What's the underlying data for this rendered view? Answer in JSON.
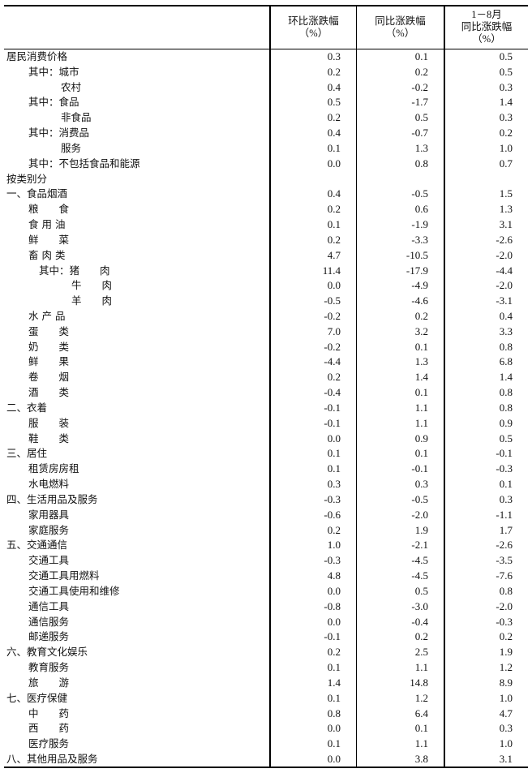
{
  "header": {
    "label": "",
    "col1": [
      "环比涨跌幅",
      "（%）"
    ],
    "col2": [
      "同比涨跌幅",
      "（%）"
    ],
    "col3": [
      "1－8月",
      "同比涨跌幅",
      "（%）"
    ]
  },
  "rows": [
    {
      "label": "居民消费价格",
      "mom": "0.3",
      "yoy": "0.1",
      "ytd": "0.5"
    },
    {
      "label": "其中：城市",
      "mom": "0.2",
      "yoy": "0.2",
      "ytd": "0.5"
    },
    {
      "label": "农村",
      "mom": "0.4",
      "yoy": "-0.2",
      "ytd": "0.3"
    },
    {
      "label": "其中：食品",
      "mom": "0.5",
      "yoy": "-1.7",
      "ytd": "1.4"
    },
    {
      "label": "非食品",
      "mom": "0.2",
      "yoy": "0.5",
      "ytd": "0.3"
    },
    {
      "label": "其中：消费品",
      "mom": "0.4",
      "yoy": "-0.7",
      "ytd": "0.2"
    },
    {
      "label": "服务",
      "mom": "0.1",
      "yoy": "1.3",
      "ytd": "1.0"
    },
    {
      "label": "其中：不包括食品和能源",
      "mom": "0.0",
      "yoy": "0.8",
      "ytd": "0.7"
    },
    {
      "label": "按类别分",
      "mom": "",
      "yoy": "",
      "ytd": ""
    },
    {
      "label": "一、食品烟酒",
      "mom": "0.4",
      "yoy": "-0.5",
      "ytd": "1.5"
    },
    {
      "label": "粮　　食",
      "mom": "0.2",
      "yoy": "0.6",
      "ytd": "1.3"
    },
    {
      "label": "食 用 油",
      "mom": "0.1",
      "yoy": "-1.9",
      "ytd": "3.1"
    },
    {
      "label": "鲜　　菜",
      "mom": "0.2",
      "yoy": "-3.3",
      "ytd": "-2.6"
    },
    {
      "label": "畜 肉 类",
      "mom": "4.7",
      "yoy": "-10.5",
      "ytd": "-2.0"
    },
    {
      "label": "其中：猪　　肉",
      "mom": "11.4",
      "yoy": "-17.9",
      "ytd": "-4.4"
    },
    {
      "label": "牛　　肉",
      "mom": "0.0",
      "yoy": "-4.9",
      "ytd": "-2.0"
    },
    {
      "label": "羊　　肉",
      "mom": "-0.5",
      "yoy": "-4.6",
      "ytd": "-3.1"
    },
    {
      "label": "水 产 品",
      "mom": "-0.2",
      "yoy": "0.2",
      "ytd": "0.4"
    },
    {
      "label": "蛋　　类",
      "mom": "7.0",
      "yoy": "3.2",
      "ytd": "3.3"
    },
    {
      "label": "奶　　类",
      "mom": "-0.2",
      "yoy": "0.1",
      "ytd": "0.8"
    },
    {
      "label": "鲜　　果",
      "mom": "-4.4",
      "yoy": "1.3",
      "ytd": "6.8"
    },
    {
      "label": "卷　　烟",
      "mom": "0.2",
      "yoy": "1.4",
      "ytd": "1.4"
    },
    {
      "label": "酒　　类",
      "mom": "-0.4",
      "yoy": "0.1",
      "ytd": "0.8"
    },
    {
      "label": "二、衣着",
      "mom": "-0.1",
      "yoy": "1.1",
      "ytd": "0.8"
    },
    {
      "label": "服　　装",
      "mom": "-0.1",
      "yoy": "1.1",
      "ytd": "0.9"
    },
    {
      "label": "鞋　　类",
      "mom": "0.0",
      "yoy": "0.9",
      "ytd": "0.5"
    },
    {
      "label": "三、居住",
      "mom": "0.1",
      "yoy": "0.1",
      "ytd": "-0.1"
    },
    {
      "label": "租赁房房租",
      "mom": "0.1",
      "yoy": "-0.1",
      "ytd": "-0.3"
    },
    {
      "label": "水电燃料",
      "mom": "0.3",
      "yoy": "0.3",
      "ytd": "0.1"
    },
    {
      "label": "四、生活用品及服务",
      "mom": "-0.3",
      "yoy": "-0.5",
      "ytd": "0.3"
    },
    {
      "label": "家用器具",
      "mom": "-0.6",
      "yoy": "-2.0",
      "ytd": "-1.1"
    },
    {
      "label": "家庭服务",
      "mom": "0.2",
      "yoy": "1.9",
      "ytd": "1.7"
    },
    {
      "label": "五、交通通信",
      "mom": "1.0",
      "yoy": "-2.1",
      "ytd": "-2.6"
    },
    {
      "label": "交通工具",
      "mom": "-0.3",
      "yoy": "-4.5",
      "ytd": "-3.5"
    },
    {
      "label": "交通工具用燃料",
      "mom": "4.8",
      "yoy": "-4.5",
      "ytd": "-7.6"
    },
    {
      "label": "交通工具使用和维修",
      "mom": "0.0",
      "yoy": "0.5",
      "ytd": "0.8"
    },
    {
      "label": "通信工具",
      "mom": "-0.8",
      "yoy": "-3.0",
      "ytd": "-2.0"
    },
    {
      "label": "通信服务",
      "mom": "0.0",
      "yoy": "-0.4",
      "ytd": "-0.3"
    },
    {
      "label": "邮递服务",
      "mom": "-0.1",
      "yoy": "0.2",
      "ytd": "0.2"
    },
    {
      "label": "六、教育文化娱乐",
      "mom": "0.2",
      "yoy": "2.5",
      "ytd": "1.9"
    },
    {
      "label": "教育服务",
      "mom": "0.1",
      "yoy": "1.1",
      "ytd": "1.2"
    },
    {
      "label": "旅　　游",
      "mom": "1.4",
      "yoy": "14.8",
      "ytd": "8.9"
    },
    {
      "label": "七、医疗保健",
      "mom": "0.1",
      "yoy": "1.2",
      "ytd": "1.0"
    },
    {
      "label": "中　　药",
      "mom": "0.8",
      "yoy": "6.4",
      "ytd": "4.7"
    },
    {
      "label": "西　　药",
      "mom": "0.0",
      "yoy": "0.1",
      "ytd": "0.3"
    },
    {
      "label": "医疗服务",
      "mom": "0.1",
      "yoy": "1.1",
      "ytd": "1.0"
    },
    {
      "label": "八、其他用品及服务",
      "mom": "0.0",
      "yoy": "3.8",
      "ytd": "3.1"
    }
  ]
}
